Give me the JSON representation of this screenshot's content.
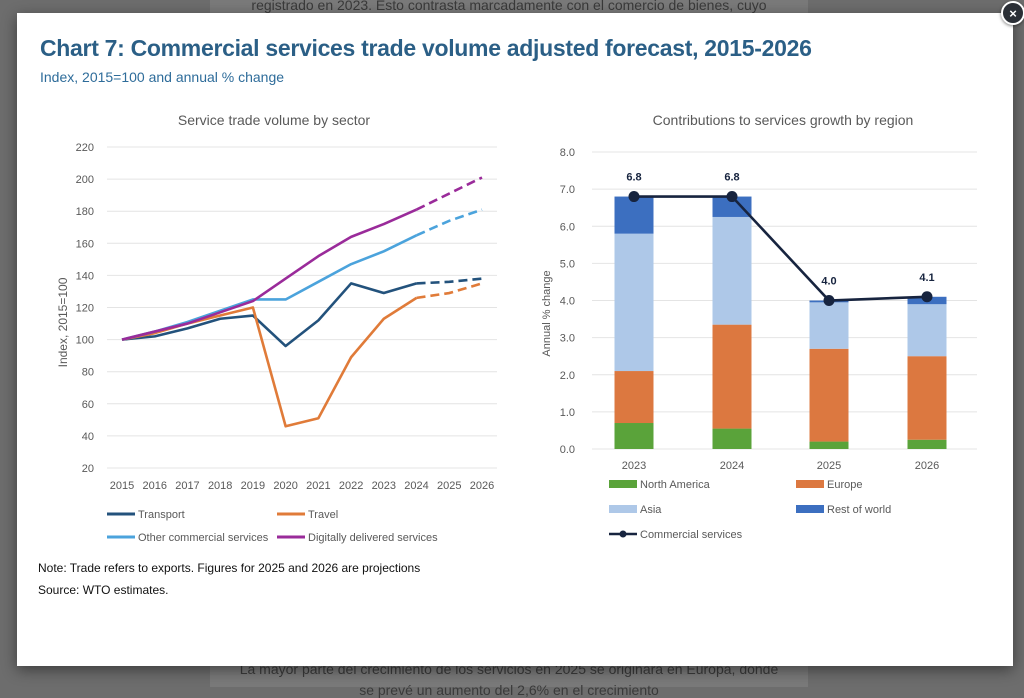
{
  "background": {
    "text_top": "registrado en 2023. Esto contrasta marcadamente con el comercio de bienes, cuyo",
    "text_bottom": "La mayor parte del crecimiento de los servicios en 2025 se originará en Europa, donde",
    "text_bottom2": "se prevé un aumento del 2,6% en el crecimiento"
  },
  "modal": {
    "close_label": "×",
    "title": "Chart 7: Commercial services trade volume adjusted forecast, 2015-2026",
    "subtitle": "Index, 2015=100 and annual % change",
    "note": "Note: Trade refers to exports.  Figures for 2025 and 2026 are projections",
    "source": "Source: WTO estimates."
  },
  "chart_data": [
    {
      "type": "line",
      "title": "Service trade volume by sector",
      "xlabel": "",
      "ylabel": "Index, 2015=100",
      "x": [
        "2015",
        "2016",
        "2017",
        "2018",
        "2019",
        "2020",
        "2021",
        "2022",
        "2023",
        "2024",
        "2025",
        "2026"
      ],
      "ylim": [
        20,
        220
      ],
      "yticks": [
        20,
        40,
        60,
        80,
        100,
        120,
        140,
        160,
        180,
        200,
        220
      ],
      "grid": true,
      "projection_from": "2024",
      "legend_position": "bottom",
      "series": [
        {
          "name": "Transport",
          "color": "#23527c",
          "values": [
            100,
            102,
            107,
            113,
            115,
            96,
            112,
            135,
            129,
            135,
            136,
            138
          ]
        },
        {
          "name": "Travel",
          "color": "#e07b39",
          "values": [
            100,
            104,
            110,
            115,
            120,
            46,
            51,
            89,
            113,
            126,
            129,
            135
          ]
        },
        {
          "name": "Other commercial services",
          "color": "#4ba3dc",
          "values": [
            100,
            105,
            111,
            118,
            125,
            125,
            136,
            147,
            155,
            165,
            174,
            181
          ]
        },
        {
          "name": "Digitally delivered services",
          "color": "#9a2b9a",
          "values": [
            100,
            105,
            110,
            117,
            124,
            138,
            152,
            164,
            172,
            181,
            191,
            201
          ]
        }
      ]
    },
    {
      "type": "bar",
      "stacked": true,
      "title": "Contributions to services growth by region",
      "xlabel": "",
      "ylabel": "Annual % change",
      "categories": [
        "2023",
        "2024",
        "2025",
        "2026"
      ],
      "ylim": [
        0,
        8
      ],
      "yticks": [
        "0.0",
        "1.0",
        "2.0",
        "3.0",
        "4.0",
        "5.0",
        "6.0",
        "7.0",
        "8.0"
      ],
      "grid": true,
      "legend_position": "bottom",
      "series": [
        {
          "name": "North America",
          "color": "#5aa33a",
          "values": [
            0.7,
            0.55,
            0.2,
            0.25
          ]
        },
        {
          "name": "Europe",
          "color": "#dc7840",
          "values": [
            1.4,
            2.8,
            2.5,
            2.25
          ]
        },
        {
          "name": "Asia",
          "color": "#aec8e8",
          "values": [
            3.7,
            2.9,
            1.25,
            1.4
          ]
        },
        {
          "name": "Rest of world",
          "color": "#3c6fc0",
          "values": [
            1.0,
            0.55,
            0.05,
            0.2
          ]
        }
      ],
      "line_series": {
        "name": "Commercial services",
        "color": "#17243f",
        "values": [
          6.8,
          6.8,
          4.0,
          4.1
        ],
        "labels": [
          "6.8",
          "6.8",
          "4.0",
          "4.1"
        ]
      }
    }
  ]
}
